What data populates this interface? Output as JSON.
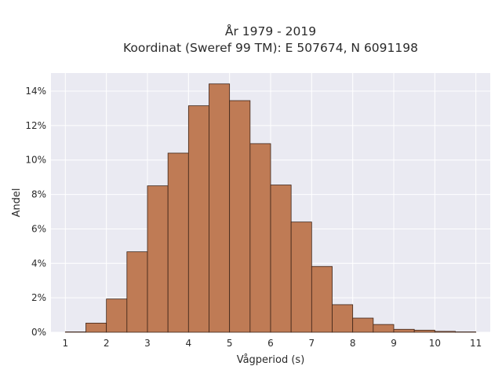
{
  "chart_data": {
    "type": "bar",
    "title_line1": "År 1979 - 2019",
    "title_line2": "Koordinat (Sweref 99 TM): E 507674, N 6091198",
    "xlabel": "Vågperiod (s)",
    "ylabel": "Andel",
    "bin_width": 0.5,
    "bins_start": [
      1.0,
      1.5,
      2.0,
      2.5,
      3.0,
      3.5,
      4.0,
      4.5,
      5.0,
      5.5,
      6.0,
      6.5,
      7.0,
      7.5,
      8.0,
      8.5,
      9.0,
      9.5,
      10.0,
      10.5
    ],
    "values": [
      0.02,
      0.53,
      1.93,
      4.67,
      8.5,
      10.4,
      13.15,
      14.42,
      13.45,
      10.95,
      8.55,
      6.4,
      3.82,
      1.6,
      0.82,
      0.45,
      0.17,
      0.12,
      0.05,
      0.02
    ],
    "xlim": [
      0.65,
      11.35
    ],
    "ylim": [
      0,
      15.05
    ],
    "x_ticks": [
      "1",
      "2",
      "3",
      "4",
      "5",
      "6",
      "7",
      "8",
      "9",
      "10",
      "11"
    ],
    "y_ticks": [
      "0%",
      "2%",
      "4%",
      "6%",
      "8%",
      "10%",
      "12%",
      "14%"
    ],
    "grid": true,
    "colors": {
      "bar_fill": "#bf7b55",
      "bar_edge": "#3d2418",
      "plot_bg": "#eaeaf2",
      "grid": "#ffffff"
    }
  }
}
